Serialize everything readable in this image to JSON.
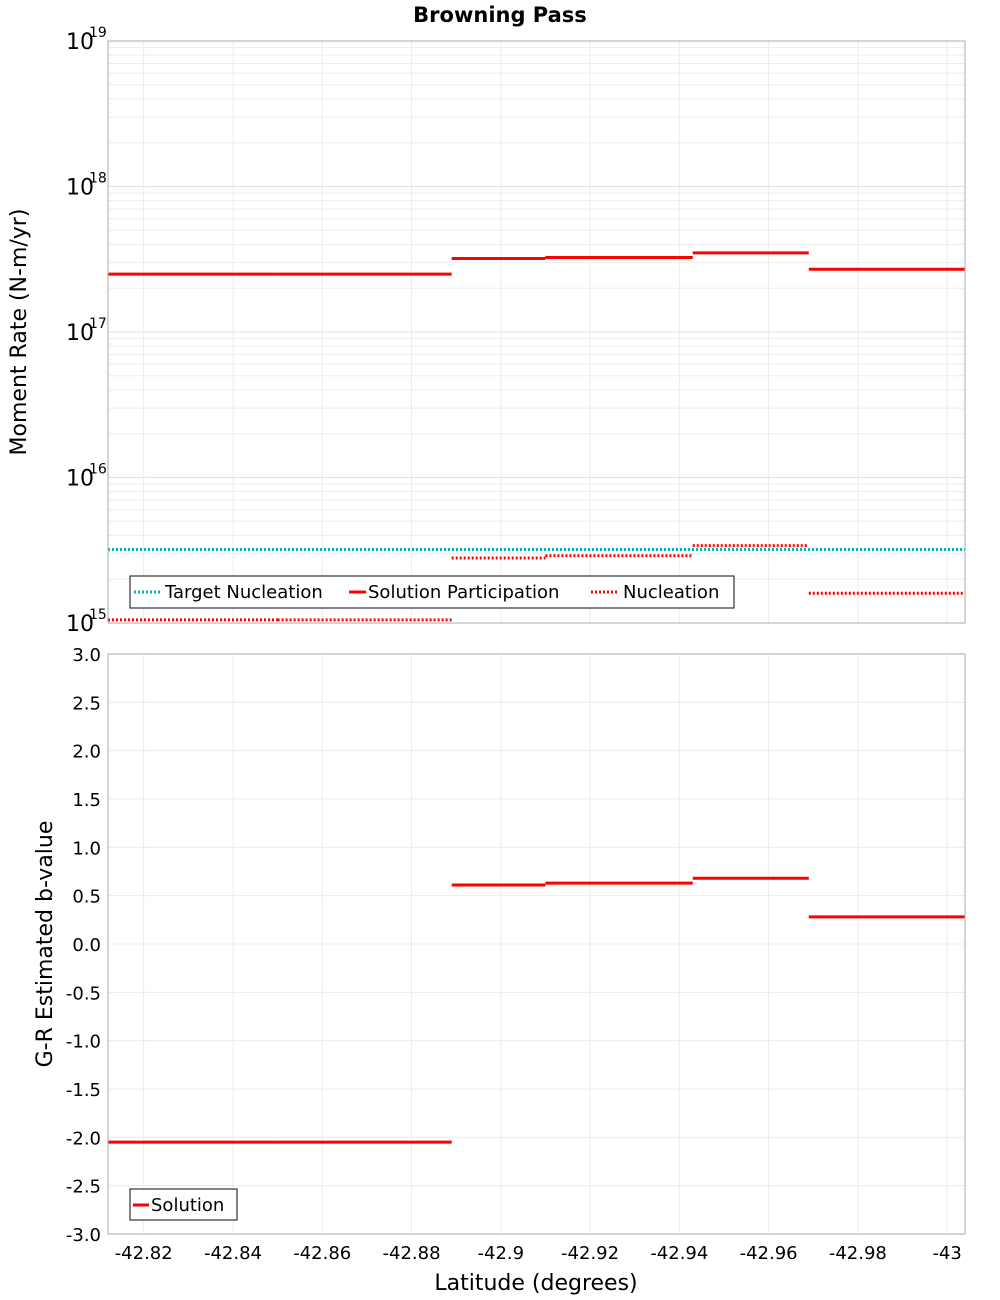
{
  "chart_data": [
    {
      "type": "line",
      "title": "Browning Pass",
      "xlabel": "",
      "ylabel": "Moment Rate (N-m/yr)",
      "yscale": "log",
      "ylim": [
        1000000000000000.0,
        1e+19
      ],
      "xlim": [
        -42.812,
        -43.004
      ],
      "grid": true,
      "legend_position": "bottom-left",
      "y_ticks": [
        {
          "base": "10",
          "exp": "15"
        },
        {
          "base": "10",
          "exp": "16"
        },
        {
          "base": "10",
          "exp": "17"
        },
        {
          "base": "10",
          "exp": "18"
        },
        {
          "base": "10",
          "exp": "19"
        }
      ],
      "series": [
        {
          "name": "Target Nucleation",
          "color": "#00b5b5",
          "style": "dotted",
          "segments": [
            [
              -42.812,
              -43.004,
              3200000000000000.0
            ]
          ]
        },
        {
          "name": "Solution Participation",
          "color": "#ff0000",
          "style": "solid",
          "segments": [
            [
              -42.812,
              -42.85,
              2.5e+17
            ],
            [
              -42.85,
              -42.889,
              2.5e+17
            ],
            [
              -42.889,
              -42.91,
              3.2e+17
            ],
            [
              -42.91,
              -42.943,
              3.25e+17
            ],
            [
              -42.943,
              -42.969,
              3.5e+17
            ],
            [
              -42.969,
              -43.004,
              2.7e+17
            ]
          ]
        },
        {
          "name": "Nucleation",
          "color": "#ff0000",
          "style": "dotted",
          "segments": [
            [
              -42.812,
              -42.85,
              1050000000000000.0
            ],
            [
              -42.85,
              -42.889,
              1050000000000000.0
            ],
            [
              -42.889,
              -42.91,
              2800000000000000.0
            ],
            [
              -42.91,
              -42.943,
              2900000000000000.0
            ],
            [
              -42.943,
              -42.969,
              3400000000000000.0
            ],
            [
              -42.969,
              -43.004,
              1600000000000000.0
            ]
          ]
        }
      ]
    },
    {
      "type": "line",
      "title": "",
      "xlabel": "Latitude (degrees)",
      "ylabel": "G-R Estimated b-value",
      "ylim": [
        -3.0,
        3.0
      ],
      "xlim": [
        -42.812,
        -43.004
      ],
      "grid": true,
      "legend_position": "bottom-left",
      "y_ticks": [
        "-3.0",
        "-2.5",
        "-2.0",
        "-1.5",
        "-1.0",
        "-0.5",
        "0.0",
        "0.5",
        "1.0",
        "1.5",
        "2.0",
        "2.5",
        "3.0"
      ],
      "x_ticks": [
        "-42.82",
        "-42.84",
        "-42.86",
        "-42.88",
        "-42.9",
        "-42.92",
        "-42.94",
        "-42.96",
        "-42.98",
        "-43"
      ],
      "series": [
        {
          "name": "Solution",
          "color": "#ff0000",
          "style": "solid",
          "segments": [
            [
              -42.812,
              -42.85,
              -2.05
            ],
            [
              -42.85,
              -42.889,
              -2.05
            ],
            [
              -42.889,
              -42.91,
              0.61
            ],
            [
              -42.91,
              -42.943,
              0.63
            ],
            [
              -42.943,
              -42.969,
              0.68
            ],
            [
              -42.969,
              -43.004,
              0.28
            ]
          ]
        }
      ]
    }
  ]
}
